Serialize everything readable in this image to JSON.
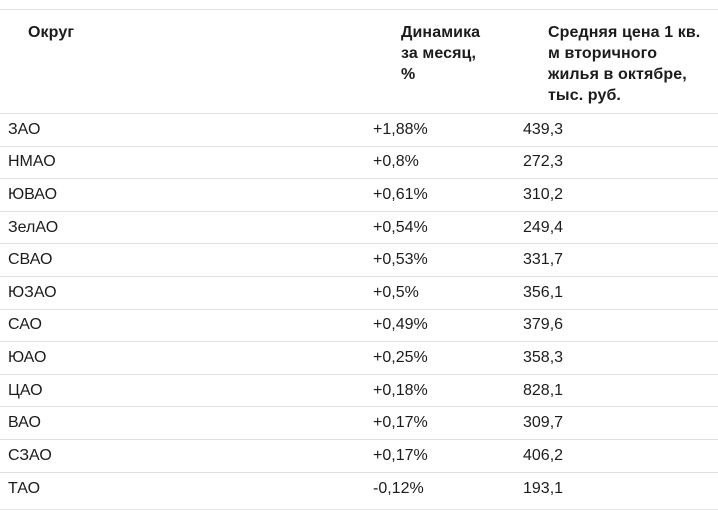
{
  "chart_data": {
    "type": "table",
    "title": "",
    "columns": [
      "Округ",
      "Динамика за месяц, %",
      "Средняя цена 1 кв. м вторичного жилья в октябре, тыс. руб."
    ],
    "rows": [
      [
        "ЗАО",
        "+1,88%",
        "439,3"
      ],
      [
        "НМАО",
        "+0,8%",
        "272,3"
      ],
      [
        "ЮВАО",
        "+0,61%",
        "310,2"
      ],
      [
        "ЗелАО",
        "+0,54%",
        "249,4"
      ],
      [
        "СВАО",
        "+0,53%",
        "331,7"
      ],
      [
        "ЮЗАО",
        "+0,5%",
        "356,1"
      ],
      [
        "САО",
        "+0,49%",
        "379,6"
      ],
      [
        "ЮАО",
        "+0,25%",
        "358,3"
      ],
      [
        "ЦАО",
        "+0,18%",
        "828,1"
      ],
      [
        "ВАО",
        "+0,17%",
        "309,7"
      ],
      [
        "СЗАО",
        "+0,17%",
        "406,2"
      ],
      [
        "ТАО",
        "-0,12%",
        "193,1"
      ]
    ]
  },
  "header_display": [
    "Округ",
    "Динамика\nза месяц,\n%",
    "Средняя цена 1 кв.\nм вторичного\nжилья в октябре,\nтыс. руб."
  ],
  "colors": {
    "background": "#ffffff",
    "header_text": "#1b1b1b",
    "body_text": "#1c1c1c",
    "divider": "#e0e0e0"
  }
}
